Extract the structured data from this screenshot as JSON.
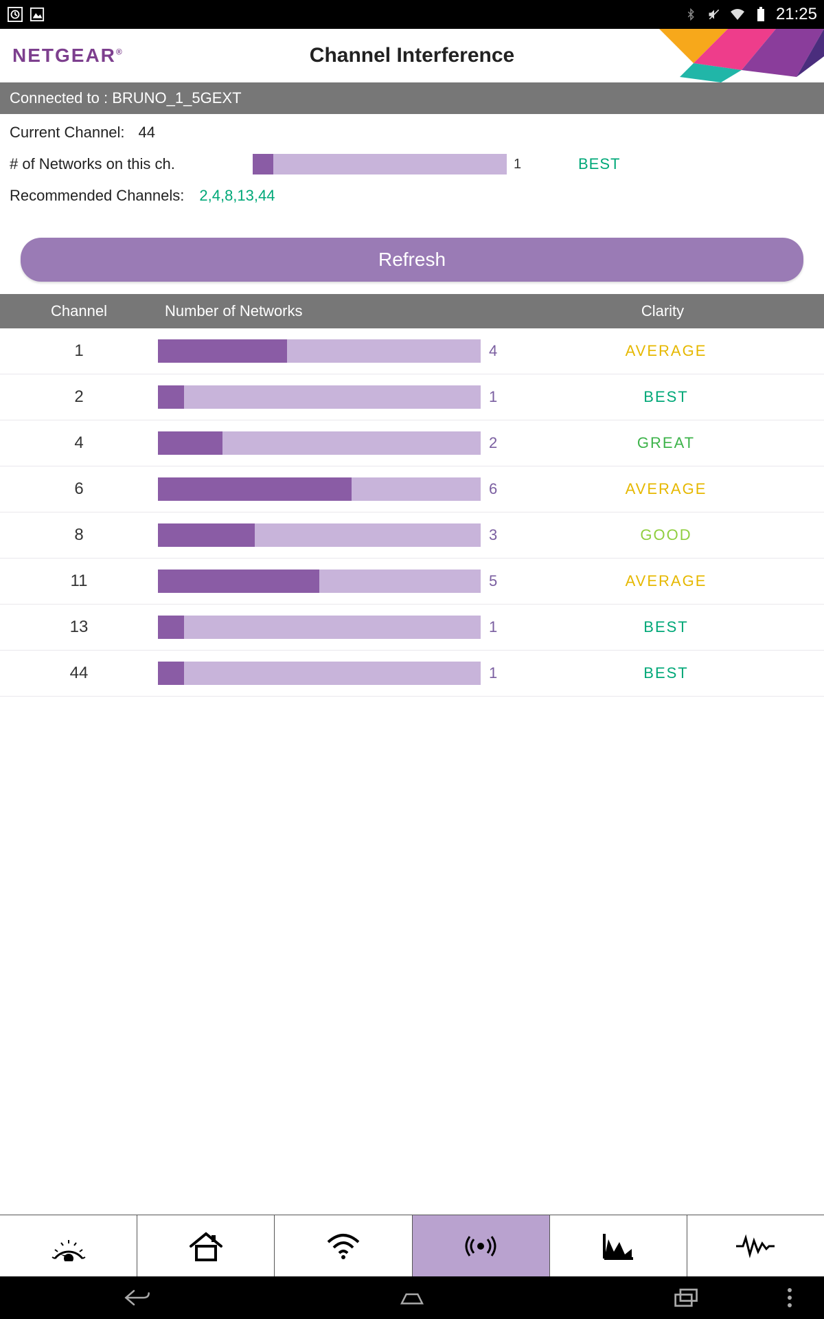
{
  "statusbar": {
    "time": "21:25"
  },
  "header": {
    "brand": "NETGEAR",
    "title": "Channel Interference"
  },
  "connected": {
    "label": "Connected to : ",
    "ssid": "BRUNO_1_5GEXT"
  },
  "info": {
    "current_channel_label": "Current Channel:",
    "current_channel_value": "44",
    "networks_on_ch_label": "# of Networks on this ch.",
    "networks_on_ch_count": "1",
    "networks_on_ch_fill_pct": 8,
    "networks_on_ch_clarity": "BEST",
    "networks_on_ch_clarity_color": "#00a878",
    "recommended_label": "Recommended Channels:",
    "recommended_values": "2,4,8,13,44",
    "bar_bg_color": "#c8b4da",
    "bar_fill_color": "#8a5ca5"
  },
  "refresh": {
    "label": "Refresh"
  },
  "table": {
    "headers": {
      "channel": "Channel",
      "networks": "Number of Networks",
      "clarity": "Clarity"
    },
    "max_networks": 10,
    "rows": [
      {
        "channel": "1",
        "count": "4",
        "fill_pct": 40,
        "clarity": "AVERAGE"
      },
      {
        "channel": "2",
        "count": "1",
        "fill_pct": 8,
        "clarity": "BEST"
      },
      {
        "channel": "4",
        "count": "2",
        "fill_pct": 20,
        "clarity": "GREAT"
      },
      {
        "channel": "6",
        "count": "6",
        "fill_pct": 60,
        "clarity": "AVERAGE"
      },
      {
        "channel": "8",
        "count": "3",
        "fill_pct": 30,
        "clarity": "GOOD"
      },
      {
        "channel": "11",
        "count": "5",
        "fill_pct": 50,
        "clarity": "AVERAGE"
      },
      {
        "channel": "13",
        "count": "1",
        "fill_pct": 8,
        "clarity": "BEST"
      },
      {
        "channel": "44",
        "count": "1",
        "fill_pct": 8,
        "clarity": "BEST"
      }
    ],
    "clarity_colors": {
      "BEST": "#00a878",
      "GREAT": "#3db34a",
      "GOOD": "#8fce3e",
      "AVERAGE": "#e6b800"
    }
  },
  "tabs": {
    "items": [
      {
        "name": "gauge"
      },
      {
        "name": "home"
      },
      {
        "name": "wifi"
      },
      {
        "name": "interference",
        "active": true
      },
      {
        "name": "chart"
      },
      {
        "name": "signal"
      }
    ]
  }
}
